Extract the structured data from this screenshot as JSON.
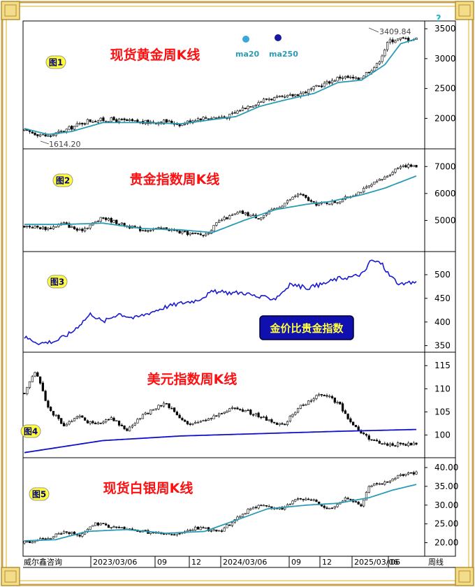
{
  "colors": {
    "frame_outer": "#c8a24a",
    "frame_inner": "#e8c96a",
    "candle": "#000000",
    "ma_short": "#2a9bb5",
    "ma_long": "#1010c8",
    "ratio_line": "#1a1ad0",
    "title_red": "#ff1010",
    "badge_yellow": "#ffff33",
    "badge_text": "#000080",
    "ratio_box_bg": "#1010b0",
    "ratio_box_text": "#ffff40"
  },
  "legend": {
    "ma20": "ma20",
    "ma250": "ma250",
    "help": "?"
  },
  "footer": {
    "source": "威尔鑫咨询",
    "period": "周线",
    "ticks": [
      "2023/03/06",
      "09",
      "12",
      "2024/03/06",
      "09",
      "12",
      "2025/03/06",
      "06"
    ]
  },
  "chart_data": [
    {
      "id": "fig1",
      "type": "candlestick",
      "badge": "图1",
      "title": "现货黄金周K线",
      "yticks": [
        "3500",
        "3000",
        "2500",
        "2000"
      ],
      "ytick_values": [
        3500,
        3000,
        2500,
        2000
      ],
      "ylim": [
        1560,
        3560
      ],
      "annotations": {
        "high": "3409.84",
        "low": "1614.20"
      },
      "close_anchors": [
        [
          0,
          1790
        ],
        [
          0.06,
          1700
        ],
        [
          0.1,
          1790
        ],
        [
          0.16,
          1960
        ],
        [
          0.22,
          1980
        ],
        [
          0.3,
          1930
        ],
        [
          0.36,
          1950
        ],
        [
          0.4,
          1900
        ],
        [
          0.44,
          2000
        ],
        [
          0.52,
          2030
        ],
        [
          0.56,
          2180
        ],
        [
          0.62,
          2330
        ],
        [
          0.66,
          2340
        ],
        [
          0.72,
          2450
        ],
        [
          0.78,
          2620
        ],
        [
          0.81,
          2700
        ],
        [
          0.85,
          2650
        ],
        [
          0.9,
          2900
        ],
        [
          0.93,
          3300
        ],
        [
          0.96,
          3330
        ],
        [
          1.0,
          3330
        ]
      ],
      "ma20_anchors": [
        [
          0,
          1830
        ],
        [
          0.06,
          1730
        ],
        [
          0.12,
          1780
        ],
        [
          0.2,
          1930
        ],
        [
          0.3,
          1930
        ],
        [
          0.4,
          1910
        ],
        [
          0.48,
          1980
        ],
        [
          0.54,
          2030
        ],
        [
          0.6,
          2200
        ],
        [
          0.66,
          2300
        ],
        [
          0.74,
          2420
        ],
        [
          0.8,
          2600
        ],
        [
          0.86,
          2640
        ],
        [
          0.92,
          2900
        ],
        [
          0.96,
          3250
        ],
        [
          1.0,
          3330
        ]
      ]
    },
    {
      "id": "fig2",
      "type": "candlestick",
      "badge": "图2",
      "title": "贵金指数周K线",
      "yticks": [
        "7000",
        "6000",
        "5000"
      ],
      "ytick_values": [
        7000,
        6000,
        5000
      ],
      "ylim": [
        4000,
        7500
      ],
      "close_anchors": [
        [
          0,
          4800
        ],
        [
          0.06,
          4700
        ],
        [
          0.1,
          4900
        ],
        [
          0.14,
          4600
        ],
        [
          0.2,
          5100
        ],
        [
          0.26,
          4800
        ],
        [
          0.3,
          4650
        ],
        [
          0.36,
          4700
        ],
        [
          0.4,
          4550
        ],
        [
          0.46,
          4450
        ],
        [
          0.5,
          5000
        ],
        [
          0.55,
          5300
        ],
        [
          0.6,
          5100
        ],
        [
          0.66,
          5600
        ],
        [
          0.7,
          6000
        ],
        [
          0.74,
          5600
        ],
        [
          0.8,
          5700
        ],
        [
          0.86,
          6100
        ],
        [
          0.92,
          6600
        ],
        [
          0.96,
          7050
        ],
        [
          1.0,
          7000
        ]
      ],
      "ma20_anchors": [
        [
          0,
          4850
        ],
        [
          0.1,
          4850
        ],
        [
          0.2,
          4900
        ],
        [
          0.3,
          4700
        ],
        [
          0.4,
          4650
        ],
        [
          0.48,
          4550
        ],
        [
          0.56,
          5000
        ],
        [
          0.64,
          5400
        ],
        [
          0.72,
          5600
        ],
        [
          0.78,
          5700
        ],
        [
          0.86,
          5950
        ],
        [
          0.92,
          6200
        ],
        [
          1.0,
          6650
        ]
      ]
    },
    {
      "id": "fig3",
      "type": "line",
      "badge": "图3",
      "label": "金价比贵金指数",
      "yticks": [
        "500",
        "450",
        "400",
        "350"
      ],
      "ytick_values": [
        500,
        450,
        400,
        350
      ],
      "ylim": [
        345,
        540
      ],
      "line_anchors": [
        [
          0,
          368
        ],
        [
          0.04,
          355
        ],
        [
          0.08,
          360
        ],
        [
          0.12,
          378
        ],
        [
          0.17,
          418
        ],
        [
          0.2,
          400
        ],
        [
          0.24,
          418
        ],
        [
          0.28,
          408
        ],
        [
          0.32,
          420
        ],
        [
          0.36,
          432
        ],
        [
          0.4,
          440
        ],
        [
          0.44,
          446
        ],
        [
          0.48,
          464
        ],
        [
          0.52,
          462
        ],
        [
          0.56,
          462
        ],
        [
          0.6,
          452
        ],
        [
          0.64,
          450
        ],
        [
          0.68,
          480
        ],
        [
          0.72,
          472
        ],
        [
          0.76,
          480
        ],
        [
          0.8,
          492
        ],
        [
          0.84,
          496
        ],
        [
          0.87,
          505
        ],
        [
          0.88,
          530
        ],
        [
          0.91,
          525
        ],
        [
          0.93,
          500
        ],
        [
          0.96,
          478
        ],
        [
          1.0,
          485
        ]
      ]
    },
    {
      "id": "fig4",
      "type": "candlestick",
      "badge": "图4",
      "title": "美元指数周K线",
      "yticks": [
        "115",
        "110",
        "105",
        "100"
      ],
      "ytick_values": [
        115,
        110,
        105,
        100
      ],
      "ylim": [
        96,
        117
      ],
      "close_anchors": [
        [
          0,
          109
        ],
        [
          0.03,
          114
        ],
        [
          0.06,
          106
        ],
        [
          0.1,
          102
        ],
        [
          0.14,
          104
        ],
        [
          0.18,
          102
        ],
        [
          0.22,
          104
        ],
        [
          0.26,
          101
        ],
        [
          0.3,
          104
        ],
        [
          0.36,
          107
        ],
        [
          0.42,
          102
        ],
        [
          0.48,
          104
        ],
        [
          0.54,
          106
        ],
        [
          0.6,
          104
        ],
        [
          0.66,
          102
        ],
        [
          0.7,
          106
        ],
        [
          0.76,
          109
        ],
        [
          0.8,
          107
        ],
        [
          0.84,
          102
        ],
        [
          0.88,
          99
        ],
        [
          0.92,
          98
        ],
        [
          0.96,
          98
        ],
        [
          1.0,
          98
        ]
      ],
      "ma_anchors": [
        [
          0,
          96.2
        ],
        [
          0.2,
          98.8
        ],
        [
          0.4,
          99.8
        ],
        [
          0.6,
          100.3
        ],
        [
          0.8,
          100.8
        ],
        [
          1.0,
          101.2
        ]
      ]
    },
    {
      "id": "fig5",
      "type": "candlestick",
      "badge": "图5",
      "title": "现货白银周K线",
      "yticks": [
        "40.00",
        "35.00",
        "30.00",
        "25.00",
        "20.00"
      ],
      "ytick_values": [
        40,
        35,
        30,
        25,
        20
      ],
      "ylim": [
        17.5,
        41.5
      ],
      "close_anchors": [
        [
          0,
          20
        ],
        [
          0.06,
          21
        ],
        [
          0.1,
          23
        ],
        [
          0.14,
          22
        ],
        [
          0.18,
          25
        ],
        [
          0.24,
          24
        ],
        [
          0.3,
          23
        ],
        [
          0.38,
          22
        ],
        [
          0.44,
          24
        ],
        [
          0.5,
          23
        ],
        [
          0.56,
          28
        ],
        [
          0.6,
          30
        ],
        [
          0.66,
          29
        ],
        [
          0.7,
          32
        ],
        [
          0.74,
          31
        ],
        [
          0.78,
          29
        ],
        [
          0.82,
          32
        ],
        [
          0.86,
          30
        ],
        [
          0.88,
          35
        ],
        [
          0.92,
          36
        ],
        [
          0.96,
          38
        ],
        [
          1.0,
          38.5
        ]
      ],
      "ma20_anchors": [
        [
          0,
          20.5
        ],
        [
          0.08,
          20.8
        ],
        [
          0.16,
          23
        ],
        [
          0.26,
          23.5
        ],
        [
          0.36,
          22.5
        ],
        [
          0.46,
          23
        ],
        [
          0.54,
          26
        ],
        [
          0.62,
          29
        ],
        [
          0.72,
          30
        ],
        [
          0.8,
          30.5
        ],
        [
          0.88,
          32
        ],
        [
          0.94,
          34
        ],
        [
          1.0,
          35.5
        ]
      ]
    }
  ]
}
